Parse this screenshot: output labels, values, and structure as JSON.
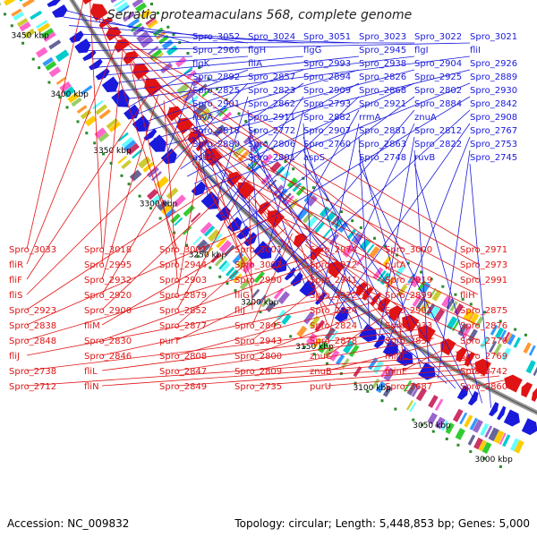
{
  "title": "Serratia proteamaculans 568, complete genome",
  "accession": "Accession: NC_009832",
  "summary": "Topology: circular; Length: 5,448,853 bp; Genes: 5,000",
  "colors": {
    "forward": "#1a1adc",
    "reverse": "#e01414",
    "backbone": "#808080",
    "tick": "#2a8a2a"
  },
  "kbp_ticks": [
    "3450 kbp",
    "3400 kbp",
    "3350 kbp",
    "3300 kbp",
    "3250 kbp",
    "3200 kbp",
    "3150 kbp",
    "3100 kbp",
    "3050 kbp",
    "3000 kbp"
  ],
  "forward_labels": [
    "Spro_3052",
    "Spro_3024",
    "Spro_3051",
    "Spro_3023",
    "Spro_3022",
    "Spro_3021",
    "Spro_2966",
    "flgH",
    "flgG",
    "Spro_2945",
    "flgI",
    "fliI",
    "flgK",
    "fliA",
    "Spro_2993",
    "Spro_2938",
    "Spro_2904",
    "Spro_2926",
    "Spro_2892",
    "Spro_2857",
    "Spro_2894",
    "Spro_2826",
    "Spro_2925",
    "Spro_2889",
    "Spro_2825",
    "Spro_2823",
    "Spro_2909",
    "Spro_2868",
    "Spro_2802",
    "Spro_2930",
    "Spro_2901",
    "Spro_2862",
    "Spro_2793",
    "Spro_2921",
    "Spro_2884",
    "Spro_2842",
    "ruvA",
    "Spro_2911",
    "Spro_2882",
    "rrmA",
    "znuA",
    "Spro_2908",
    "Spro_2818",
    "Spro_2772",
    "Spro_2907",
    "Spro_2881",
    "Spro_2812",
    "Spro_2767",
    "Spro_2880",
    "Spro_2806",
    "Spro_2760",
    "Spro_2863",
    "Spro_2822",
    "Spro_2753",
    "astD",
    "Spro_2801",
    "aspS",
    "Spro_2748",
    "ruvB",
    "Spro_2745"
  ],
  "reverse_labels": [
    "Spro_3033",
    "Spro_3018",
    "Spro_3007",
    "Spro_3001",
    "Spro_2974",
    "Spro_3000",
    "Spro_2971",
    "fliR",
    "Spro_2995",
    "Spro_2944",
    "Spro_3002",
    "Spro_2972",
    "putA",
    "Spro_2973",
    "fliF",
    "Spro_2932",
    "Spro_2903",
    "Spro_2990",
    "Spro_2941",
    "Spro_2919",
    "Spro_2991",
    "fliS",
    "Spro_2920",
    "Spro_2879",
    "fliG",
    "Spro_2922",
    "Spro_2899",
    "fliH",
    "Spro_2923",
    "Spro_2900",
    "Spro_2852",
    "fliJ",
    "Spro_2924",
    "Spro_2902",
    "Spro_2875",
    "Spro_2838",
    "fliM",
    "Spro_2877",
    "Spro_2845",
    "Spro_2824",
    "Spro_2933",
    "Spro_2876",
    "Spro_2848",
    "Spro_2830",
    "purT",
    "Spro_2943",
    "Spro_2878",
    "Spro_2837",
    "Spro_2770",
    "fliJ",
    "Spro_2846",
    "Spro_2808",
    "Spro_2800",
    "znuC",
    "minC",
    "Spro_2769",
    "Spro_2738",
    "fliL",
    "Spro_2847",
    "Spro_2809",
    "znuB",
    "minE",
    "Spro_2742",
    "Spro_2712",
    "fliN",
    "Spro_2849",
    "Spro_2735",
    "purU",
    "Spro_2687",
    "Spro_2860"
  ]
}
